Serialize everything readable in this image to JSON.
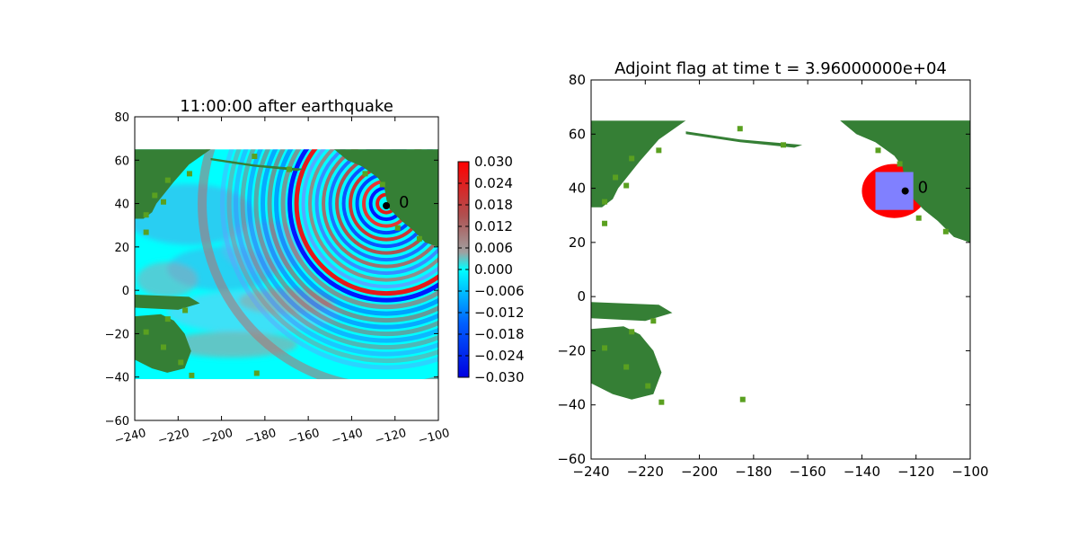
{
  "colors": {
    "ocean": "#00ffff",
    "land_dark": "#357f35",
    "land_light": "#5aa020",
    "flag_red": "#ff0000",
    "flag_box": "#8080ff",
    "marker": "#000000"
  },
  "chart_data": [
    {
      "type": "heatmap",
      "title": "11:00:00 after earthquake",
      "xlim": [
        -240,
        -100
      ],
      "ylim": [
        -60,
        80
      ],
      "xticks": [
        -240,
        -220,
        -200,
        -180,
        -160,
        -140,
        -120,
        -100
      ],
      "yticks": [
        -60,
        -40,
        -20,
        0,
        20,
        40,
        60,
        80
      ],
      "xtick_labels": [
        "−240",
        "−220",
        "−200",
        "−180",
        "−160",
        "−140",
        "−120",
        "−100"
      ],
      "ytick_labels": [
        "−60",
        "−40",
        "−20",
        "0",
        "20",
        "40",
        "60",
        "80"
      ],
      "xticklabel_rotation": "rotated",
      "domain_lon": [
        -240,
        -100
      ],
      "domain_lat": [
        -41,
        65
      ],
      "gauge": {
        "label": "0",
        "lon": -124,
        "lat": 39
      },
      "colorbar": {
        "range": [
          -0.03,
          0.03
        ],
        "colormap": "blue-cyan-gray-red",
        "ticks": [
          0.03,
          0.024,
          0.018,
          0.012,
          0.006,
          0.0,
          -0.006,
          -0.012,
          -0.018,
          -0.024,
          -0.03
        ],
        "tick_labels": [
          "0.030",
          "0.024",
          "0.018",
          "0.012",
          "0.006",
          "0.000",
          "−0.006",
          "−0.012",
          "−0.018",
          "−0.024",
          "−0.030"
        ]
      }
    },
    {
      "type": "heatmap",
      "title": "Adjoint flag at time t = 3.96000000e+04",
      "xlim": [
        -240,
        -100
      ],
      "ylim": [
        -60,
        80
      ],
      "xticks": [
        -240,
        -220,
        -200,
        -180,
        -160,
        -140,
        -120,
        -100
      ],
      "yticks": [
        -60,
        -40,
        -20,
        0,
        20,
        40,
        60,
        80
      ],
      "xtick_labels": [
        "−240",
        "−220",
        "−200",
        "−180",
        "−160",
        "−140",
        "−120",
        "−100"
      ],
      "ytick_labels": [
        "−60",
        "−40",
        "−20",
        "0",
        "20",
        "40",
        "60",
        "80"
      ],
      "gauge": {
        "label": "0",
        "lon": -124,
        "lat": 39
      },
      "flag_region": {
        "center_lon": -128,
        "center_lat": 39,
        "radius_lon": 12,
        "radius_lat": 10
      },
      "refined_box": {
        "lon": [
          -135,
          -121
        ],
        "lat": [
          32,
          46
        ]
      }
    }
  ]
}
